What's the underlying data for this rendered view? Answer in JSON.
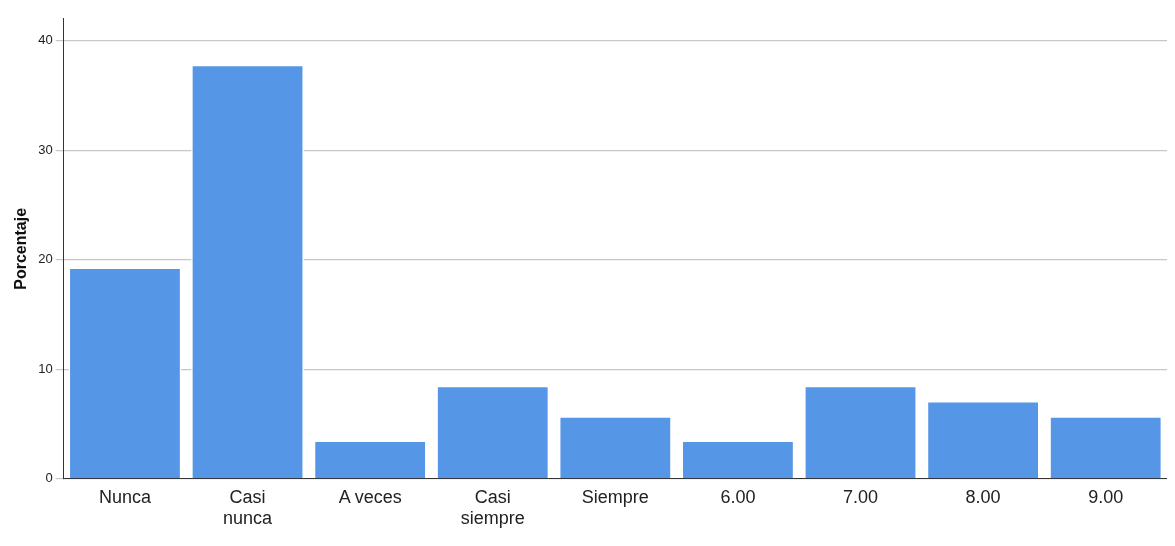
{
  "chart_data": {
    "type": "bar",
    "ylabel": "Porcentaje",
    "categories": [
      "Nunca",
      "Casi nunca",
      "A veces",
      "Casi siempre",
      "Siempre",
      "6.00",
      "7.00",
      "8.00",
      "9.00"
    ],
    "values": [
      19.3,
      37.8,
      3.5,
      8.5,
      5.7,
      3.5,
      8.5,
      7.1,
      5.7
    ],
    "color": "#5596e6",
    "ylim": [
      0,
      42
    ],
    "yticks": [
      0,
      10,
      20,
      30,
      40
    ],
    "grid": "y",
    "legend": false
  }
}
